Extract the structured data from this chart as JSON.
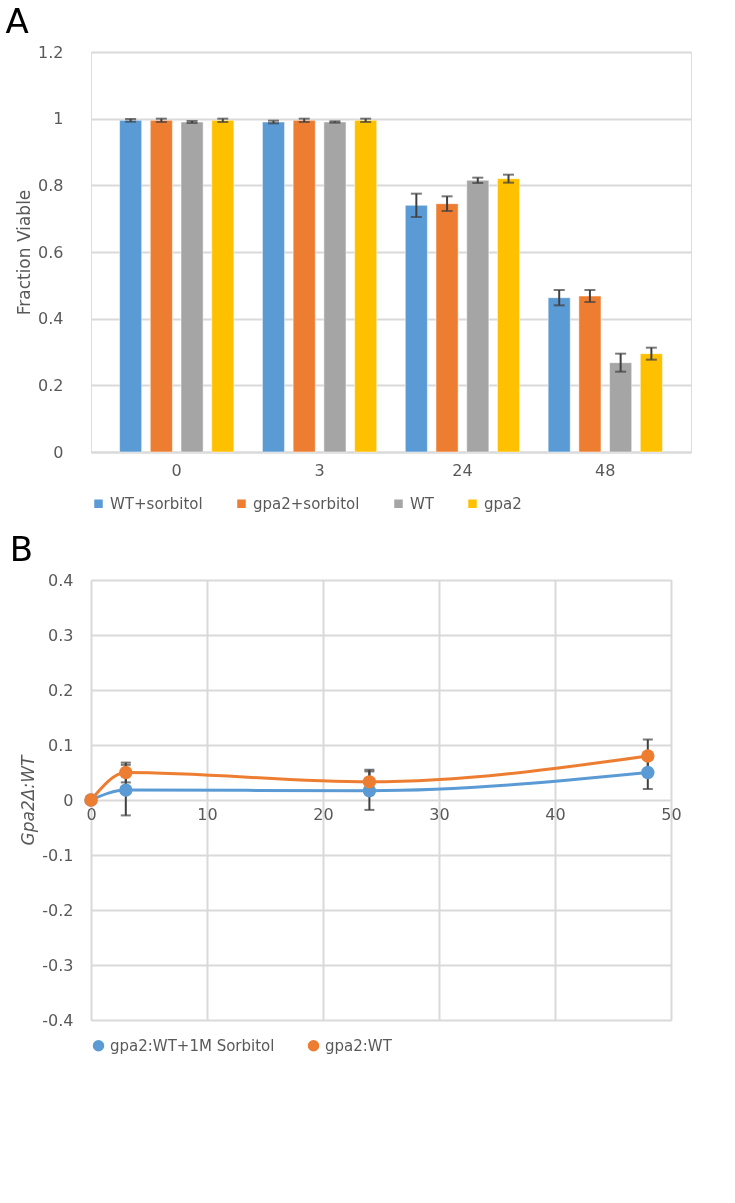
{
  "chart_data": [
    {
      "type": "bar",
      "title": "A",
      "ylabel": "Fraction Viable",
      "categories": [
        "0",
        "3",
        "24",
        "48"
      ],
      "series": [
        {
          "name": "WT+sorbitol",
          "color": "#5b9bd5",
          "values": [
            0.995,
            0.99,
            0.74,
            0.463
          ],
          "errors": [
            0.004,
            0.004,
            0.035,
            0.023
          ]
        },
        {
          "name": "gpa2+sorbitol",
          "color": "#ed7d31",
          "values": [
            0.995,
            0.995,
            0.745,
            0.468
          ],
          "errors": [
            0.005,
            0.005,
            0.022,
            0.018
          ]
        },
        {
          "name": "WT",
          "color": "#a5a5a5",
          "values": [
            0.99,
            0.99,
            0.815,
            0.268
          ],
          "errors": [
            0.003,
            0.002,
            0.008,
            0.027
          ]
        },
        {
          "name": "gpa2",
          "color": "#ffc000",
          "values": [
            0.995,
            0.995,
            0.82,
            0.295
          ],
          "errors": [
            0.005,
            0.005,
            0.012,
            0.018
          ]
        }
      ],
      "ylim": [
        0,
        1.2
      ],
      "yticks": [
        0,
        0.2,
        0.4,
        0.6,
        0.8,
        1,
        1.2
      ],
      "grid": "y",
      "legend": "bottom"
    },
    {
      "type": "line",
      "title": "B",
      "ylabel": "Gpa2Δ:WT",
      "x": [
        0,
        3,
        24,
        48
      ],
      "series": [
        {
          "name": "gpa2:WT+1M Sorbitol",
          "color": "#5b9bd5",
          "values": [
            0,
            0.018,
            0.017,
            0.05
          ],
          "errors": [
            null,
            0.046,
            0.035,
            0.03
          ]
        },
        {
          "name": "gpa2:WT",
          "color": "#ed7d31",
          "values": [
            0,
            0.05,
            0.033,
            0.08
          ],
          "errors": [
            null,
            0.018,
            0.022,
            0.03
          ]
        }
      ],
      "xlim": [
        0,
        50
      ],
      "xticks": [
        0,
        10,
        20,
        30,
        40,
        50
      ],
      "ylim": [
        -0.4,
        0.4
      ],
      "yticks": [
        -0.4,
        -0.3,
        -0.2,
        -0.1,
        0,
        0.1,
        0.2,
        0.3,
        0.4
      ],
      "grid": true,
      "marker": "circle",
      "legend": "bottom"
    }
  ]
}
